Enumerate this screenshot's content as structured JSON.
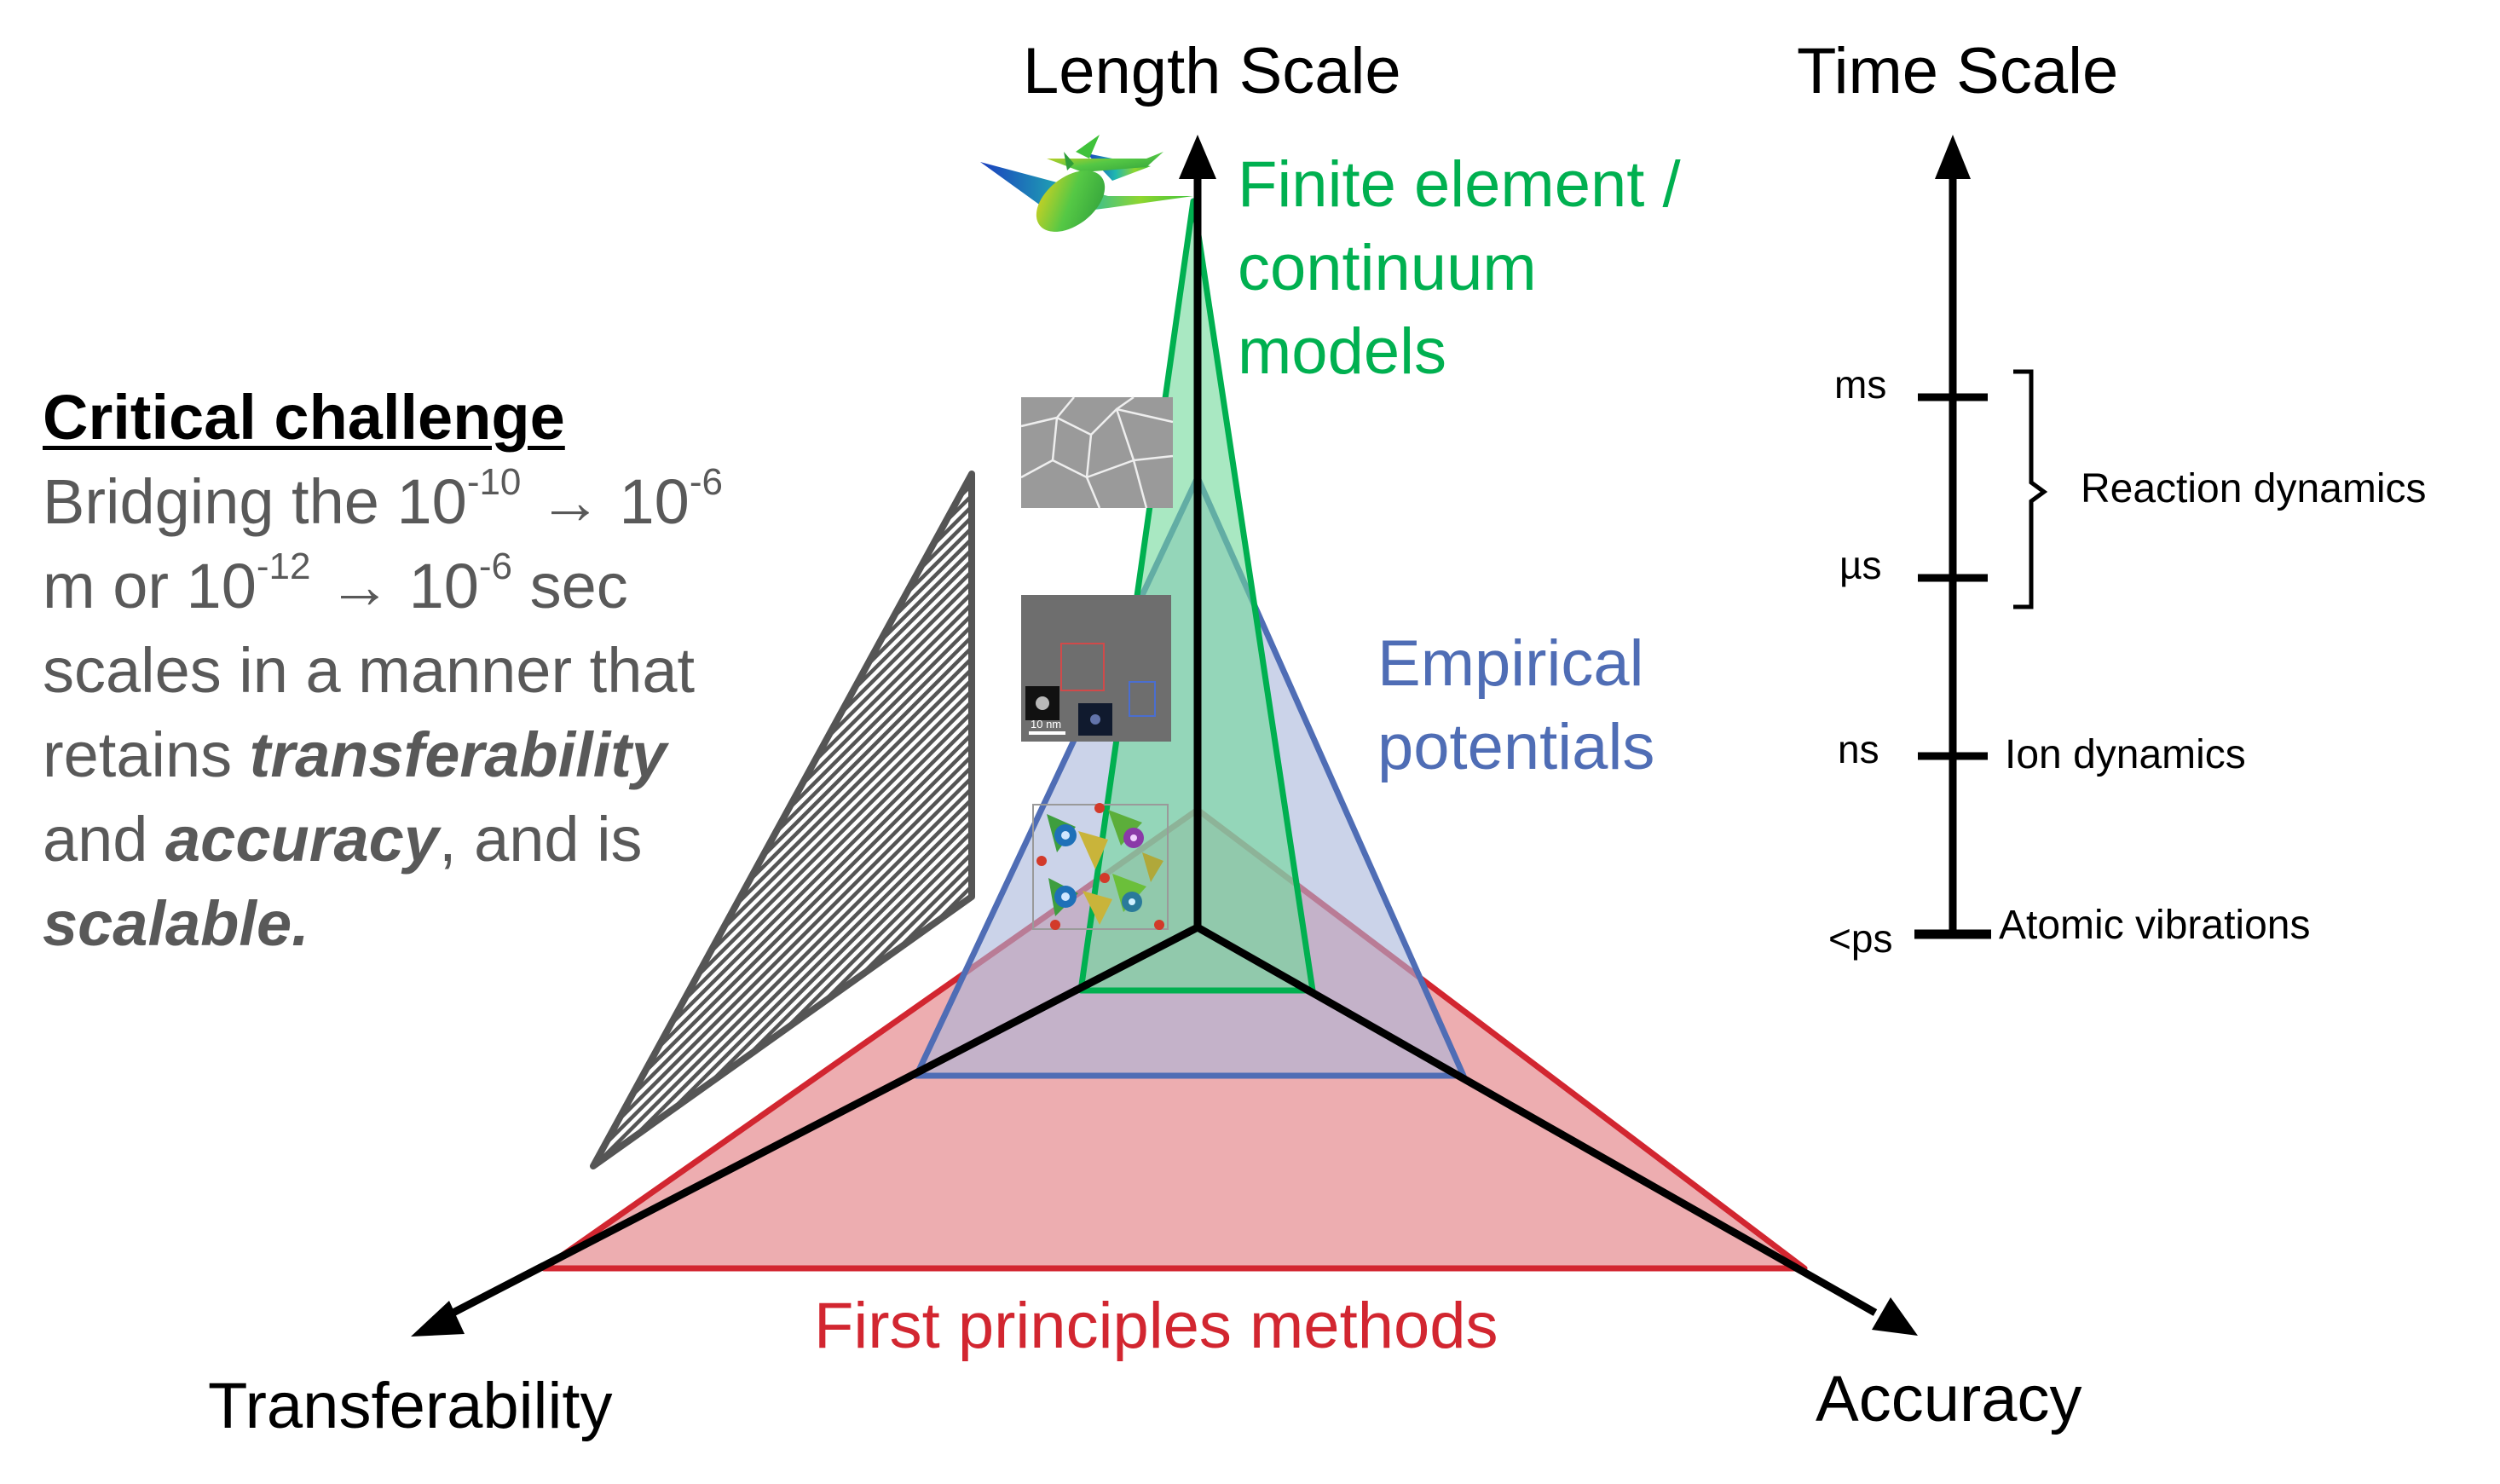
{
  "axes": {
    "length_scale": "Length Scale",
    "time_scale": "Time Scale",
    "transferability": "Transferability",
    "accuracy": "Accuracy"
  },
  "methods": {
    "finite_element_line1": "Finite element /",
    "finite_element_line2": "continuum",
    "finite_element_line3": "models",
    "empirical_line1": "Empirical",
    "empirical_line2": "potentials",
    "first_principles": "First principles methods"
  },
  "challenge": {
    "heading": "Critical challenge",
    "t1": "Bridging the 10",
    "e1": "-10",
    "t2": " → 10",
    "e2": "-6",
    "t3": "m or 10",
    "e3": "-12",
    "t4": " → 10",
    "e4": "-6",
    "t5": " sec",
    "t6": "scales in a manner that",
    "t7": "retains ",
    "kw1": "transferability",
    "t8": "and ",
    "kw2": "accuracy",
    "t9": ", and is",
    "kw3": "scalable."
  },
  "time_scale": {
    "ticks": [
      "ms",
      "µs",
      "ns",
      "<ps"
    ],
    "reaction_dynamics": "Reaction dynamics",
    "ion_dynamics": "Ion dynamics",
    "atomic_vibrations": "Atomic vibrations"
  },
  "inset_images": {
    "scale_label": "10 nm"
  },
  "colors": {
    "green": "#00b050",
    "blue": "#4f6db5",
    "red": "#d22630",
    "red_fill": "#e8999c",
    "blue_fill": "#b5c0df",
    "green_fill": "#8fdfae",
    "text_gray": "#595959"
  }
}
